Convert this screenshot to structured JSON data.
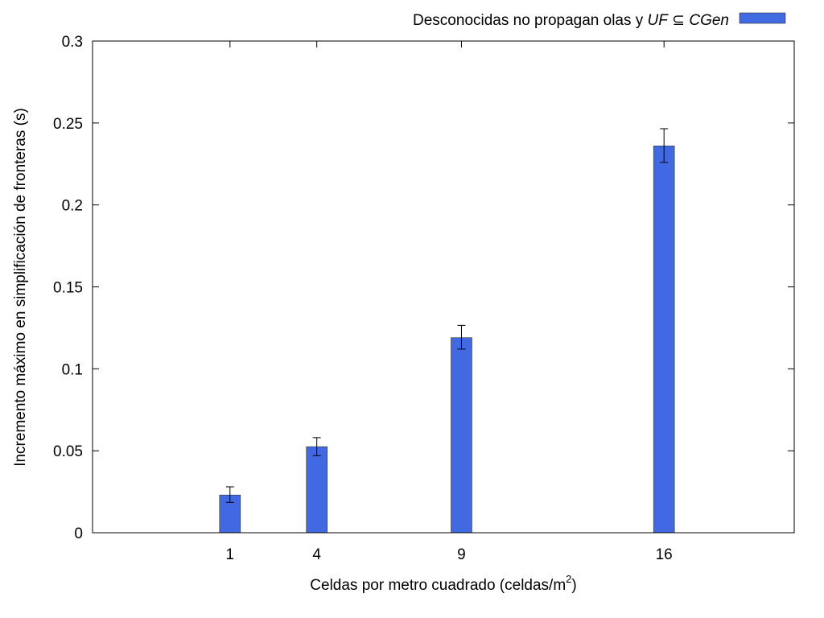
{
  "chart_data": {
    "type": "bar",
    "x": [
      1,
      4,
      9,
      16
    ],
    "xlim": [
      -3.75,
      20.5
    ],
    "ylim": [
      0,
      0.3
    ],
    "yticks": [
      0,
      0.05,
      0.1,
      0.15,
      0.2,
      0.25,
      0.3
    ],
    "ytick_labels": [
      "0",
      "0.05",
      "0.1",
      "0.15",
      "0.2",
      "0.25",
      "0.3"
    ],
    "xtick_labels": [
      "1",
      "4",
      "9",
      "16"
    ],
    "xlabel": {
      "main": "Celdas por metro cuadrado (celdas/m",
      "sup": "2",
      "close": ")"
    },
    "ylabel": "Incremento máximo en simplificación de fronteras (s)",
    "grid": false,
    "legend_position": "top-right",
    "series": [
      {
        "name": "Desconocidas no propagan olas y UF ⊆ CGen",
        "name_parts": {
          "prefix": "Desconocidas no propagan olas y ",
          "uf": "UF",
          "op": " ⊆ ",
          "cgen": "CGen"
        },
        "color": "#4169e1",
        "values": [
          0.023,
          0.0525,
          0.119,
          0.236
        ],
        "error_low": [
          0.0185,
          0.047,
          0.112,
          0.226
        ],
        "error_high": [
          0.028,
          0.058,
          0.1265,
          0.2465
        ]
      }
    ]
  }
}
